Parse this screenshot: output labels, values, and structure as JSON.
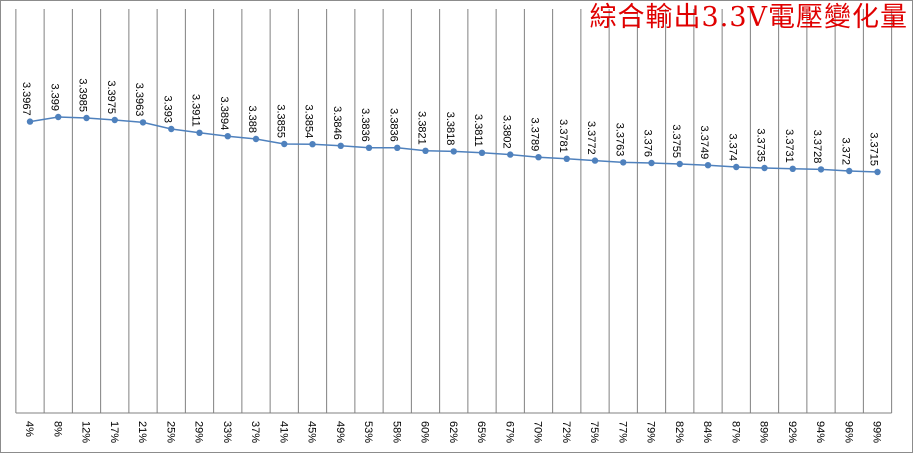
{
  "chart_data": {
    "type": "line",
    "title": "綜合輸出3.3V電壓變化量",
    "xlabel": "",
    "ylabel": "",
    "categories": [
      "4%",
      "8%",
      "12%",
      "17%",
      "21%",
      "25%",
      "29%",
      "33%",
      "37%",
      "41%",
      "45%",
      "49%",
      "53%",
      "58%",
      "60%",
      "62%",
      "65%",
      "67%",
      "70%",
      "72%",
      "75%",
      "77%",
      "79%",
      "82%",
      "84%",
      "87%",
      "89%",
      "92%",
      "94%",
      "96%",
      "99%"
    ],
    "values": [
      3.3967,
      3.399,
      3.3985,
      3.3975,
      3.3963,
      3.393,
      3.3911,
      3.3894,
      3.388,
      3.3855,
      3.3854,
      3.3846,
      3.3836,
      3.3836,
      3.3821,
      3.3818,
      3.3811,
      3.3802,
      3.3789,
      3.3781,
      3.3772,
      3.3763,
      3.376,
      3.3755,
      3.3749,
      3.374,
      3.3735,
      3.3731,
      3.3728,
      3.372,
      3.3715
    ],
    "data_labels": [
      "3.3967",
      "3.399",
      "3.3985",
      "3.3975",
      "3.3963",
      "3.393",
      "3.3911",
      "3.3894",
      "3.388",
      "3.3855",
      "3.3854",
      "3.3846",
      "3.3836",
      "3.3836",
      "3.3821",
      "3.3818",
      "3.3811",
      "3.3802",
      "3.3789",
      "3.3781",
      "3.3772",
      "3.3763",
      "3.376",
      "3.3755",
      "3.3749",
      "3.374",
      "3.3735",
      "3.3731",
      "3.3728",
      "3.372",
      "3.3715"
    ],
    "ylim": [
      3.32,
      3.4186
    ],
    "grid": "vertical",
    "legend": "none",
    "colors": {
      "line": "#4f81bd",
      "grid": "#808080",
      "title": "#e00000",
      "label": "#000000"
    }
  }
}
